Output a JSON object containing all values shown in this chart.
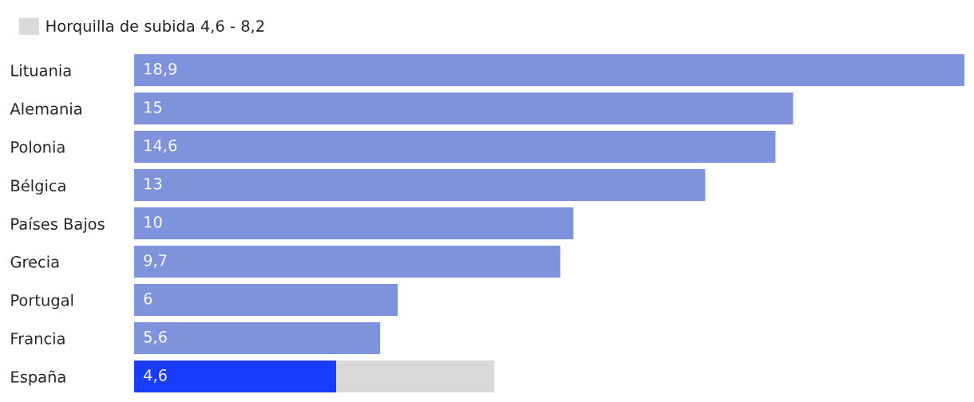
{
  "chart_data": {
    "type": "bar",
    "orientation": "horizontal",
    "stacked": true,
    "legend": "top left",
    "categories": [
      "Lituania",
      "Alemania",
      "Polonia",
      "Bélgica",
      "Países Bajos",
      "Grecia",
      "Portugal",
      "Francia",
      "España"
    ],
    "series": [
      {
        "colors": [
          "#7f92dc",
          "#7f92dc",
          "#7f92dc",
          "#7f92dc",
          "#7f92dc",
          "#7f92dc",
          "#7f92dc",
          "#7f92dc",
          "#1a3cff"
        ],
        "values": [
          18.9,
          15,
          14.6,
          13,
          10,
          9.7,
          6,
          5.6,
          4.6
        ],
        "value_labels": [
          "18,9",
          "15",
          "14,6",
          "13",
          "10",
          "9,7",
          "6",
          "5,6",
          "4,6"
        ]
      },
      {
        "name": "Horquilla de subida 4,6 - 8,2",
        "color": "#d9d9d9",
        "values": [
          null,
          null,
          null,
          null,
          null,
          null,
          null,
          null,
          3.6
        ]
      }
    ],
    "grid": false
  }
}
